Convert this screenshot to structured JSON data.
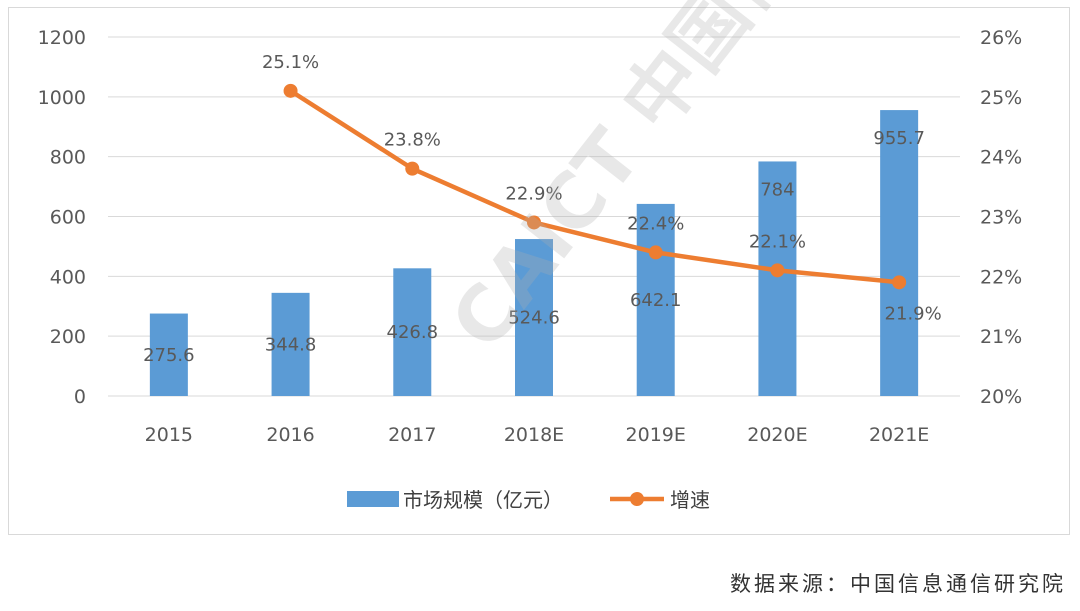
{
  "chart_data": {
    "type": "bar",
    "categories": [
      "2015",
      "2016",
      "2017",
      "2018E",
      "2019E",
      "2020E",
      "2021E"
    ],
    "series": [
      {
        "name": "市场规模（亿元）",
        "type": "bar",
        "axis": "left",
        "color": "#5b9bd5",
        "values": [
          275.6,
          344.8,
          426.8,
          524.6,
          642.1,
          784,
          955.7
        ],
        "labels": [
          "275.6",
          "344.8",
          "426.8",
          "524.6",
          "642.1",
          "784",
          "955.7"
        ]
      },
      {
        "name": "增速",
        "type": "line",
        "axis": "right",
        "color": "#ed7d31",
        "values": [
          null,
          25.1,
          23.8,
          22.9,
          22.4,
          22.1,
          21.9
        ],
        "labels": [
          null,
          "25.1%",
          "23.8%",
          "22.9%",
          "22.4%",
          "22.1%",
          "21.9%"
        ]
      }
    ],
    "y_left": {
      "ylim": [
        0,
        1200
      ],
      "ticks": [
        "0",
        "200",
        "400",
        "600",
        "800",
        "1000",
        "1200"
      ]
    },
    "y_right": {
      "ylim": [
        20,
        26
      ],
      "ticks": [
        "20%",
        "21%",
        "22%",
        "23%",
        "24%",
        "25%",
        "26%"
      ]
    },
    "grid": true,
    "legend": "bottom"
  },
  "source_note": "数据来源：中国信息通信研究院",
  "watermark": "CAICT 中国信通院"
}
